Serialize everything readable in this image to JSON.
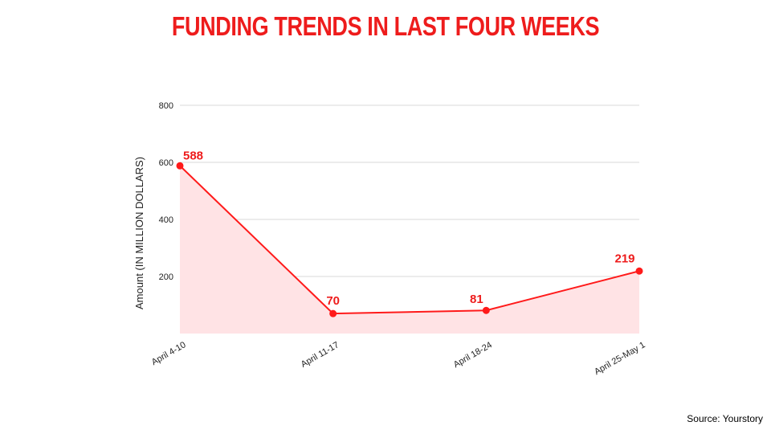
{
  "title": "FUNDING TRENDS IN LAST FOUR WEEKS",
  "source": "Source: Yourstory",
  "colors": {
    "title": "#ee1c1c",
    "line": "#ff1a1a",
    "area": "#ffe3e5",
    "grid": "#d9d9d9"
  },
  "chart_data": {
    "type": "area",
    "title": "FUNDING TRENDS IN LAST FOUR WEEKS",
    "xlabel": "",
    "ylabel": "Amount (IN MILLION DOLLARS)",
    "categories": [
      "April 4-10",
      "April 11-17",
      "April 18-24",
      "April 25-May 1"
    ],
    "series": [
      {
        "values": [
          588,
          70,
          81,
          219
        ]
      }
    ],
    "data_labels": [
      "588",
      "70",
      "81",
      "219"
    ],
    "ylim": [
      0,
      800
    ],
    "yticks": [
      200,
      400,
      600,
      800
    ],
    "grid": true,
    "legend": "none"
  }
}
